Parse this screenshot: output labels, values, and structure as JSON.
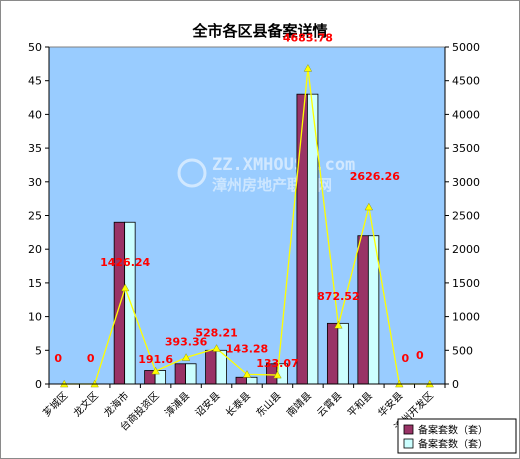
{
  "chart_data": {
    "type": "bar",
    "title": "全市各区县备案详情",
    "categories": [
      "芗城区",
      "龙文区",
      "龙海市",
      "台商投资区",
      "漳浦县",
      "诏安县",
      "长泰县",
      "东山县",
      "南靖县",
      "云霄县",
      "平和县",
      "华安县",
      "漳州开发区"
    ],
    "series": [
      {
        "name": "备案套数（套）",
        "axis": "left",
        "color": "#993366",
        "values": [
          0,
          0,
          24,
          2,
          3,
          5,
          1,
          3,
          43,
          9,
          22,
          0,
          0
        ]
      },
      {
        "name": "备案套数（套）",
        "axis": "left",
        "color": "#ccffff",
        "values": [
          0,
          0,
          24,
          2,
          3,
          5,
          1,
          3,
          43,
          9,
          22,
          0,
          0
        ]
      },
      {
        "type": "line",
        "axis": "right",
        "color": "#ffff00",
        "values": [
          0,
          0,
          1426.24,
          191.6,
          393.36,
          528.21,
          143.28,
          133.07,
          4683.78,
          872.52,
          2626.26,
          0,
          0
        ],
        "labels": [
          "0",
          "0",
          "1426.24",
          "191.6",
          "393.36",
          "528.21",
          "143.28",
          "133.07",
          "4683.78",
          "872.52",
          "2626.26",
          "0",
          "0"
        ]
      }
    ],
    "y_left": {
      "min": 0,
      "max": 50,
      "step": 5
    },
    "y_right": {
      "min": 0,
      "max": 5000,
      "step": 500
    },
    "legend_position": "bottom-right",
    "grid": false
  },
  "watermark": {
    "line1": "ZZ.XMHOUSE.com",
    "line2": "漳州房地产联合网"
  },
  "colors": {
    "plot_bg": "#99ccff"
  }
}
